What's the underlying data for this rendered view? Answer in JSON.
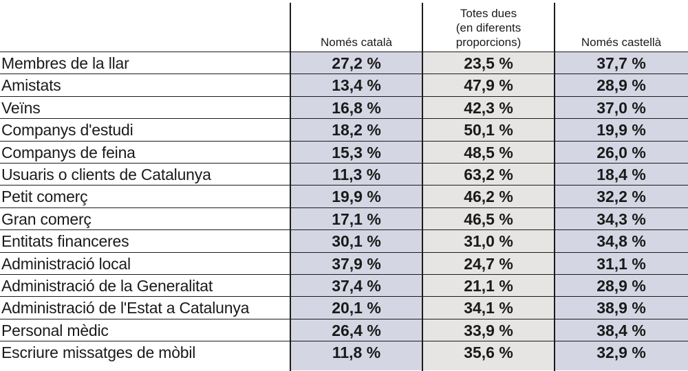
{
  "chart_data": {
    "type": "table",
    "columns": [
      "Només català",
      "Totes dues (en diferents proporcions)",
      "Només castellà"
    ],
    "column_header_lines": [
      [
        "Només català"
      ],
      [
        "Totes dues",
        "(en diferents",
        "proporcions)"
      ],
      [
        "Només castellà"
      ]
    ],
    "rows": [
      {
        "label": "Membres de la llar",
        "values": [
          "27,2 %",
          "23,5 %",
          "37,7 %"
        ]
      },
      {
        "label": "Amistats",
        "values": [
          "13,4 %",
          "47,9 %",
          "28,9 %"
        ]
      },
      {
        "label": "Veïns",
        "values": [
          "16,8 %",
          "42,3 %",
          "37,0 %"
        ]
      },
      {
        "label": "Companys d'estudi",
        "values": [
          "18,2 %",
          "50,1 %",
          "19,9 %"
        ]
      },
      {
        "label": "Companys de feina",
        "values": [
          "15,3 %",
          "48,5 %",
          "26,0 %"
        ]
      },
      {
        "label": "Usuaris o clients de Catalunya",
        "values": [
          "11,3 %",
          "63,2 %",
          "18,4 %"
        ]
      },
      {
        "label": "Petit comerç",
        "values": [
          "19,9 %",
          "46,2 %",
          "32,2 %"
        ]
      },
      {
        "label": "Gran comerç",
        "values": [
          "17,1 %",
          "46,5 %",
          "34,3 %"
        ]
      },
      {
        "label": "Entitats financeres",
        "values": [
          "30,1 %",
          "31,0 %",
          "34,8 %"
        ]
      },
      {
        "label": "Administració local",
        "values": [
          "37,9 %",
          "24,7 %",
          "31,1 %"
        ]
      },
      {
        "label": "Administració de la Generalitat",
        "values": [
          "37,4 %",
          "21,1 %",
          "28,9 %"
        ]
      },
      {
        "label": "Administració de l'Estat a Catalunya",
        "values": [
          "20,1 %",
          "34,1 %",
          "38,9 %"
        ]
      },
      {
        "label": "Personal mèdic",
        "values": [
          "26,4 %",
          "33,9 %",
          "38,4 %"
        ]
      },
      {
        "label": "Escriure missatges de mòbil",
        "values": [
          "11,8 %",
          "35,6 %",
          "32,9 %"
        ]
      }
    ],
    "colors": {
      "catala_column_bg": "#d4d6e3",
      "both_column_bg": "#e6e5e3",
      "castella_column_bg": "#d4d6e3",
      "rule": "#1a1a1a"
    }
  }
}
